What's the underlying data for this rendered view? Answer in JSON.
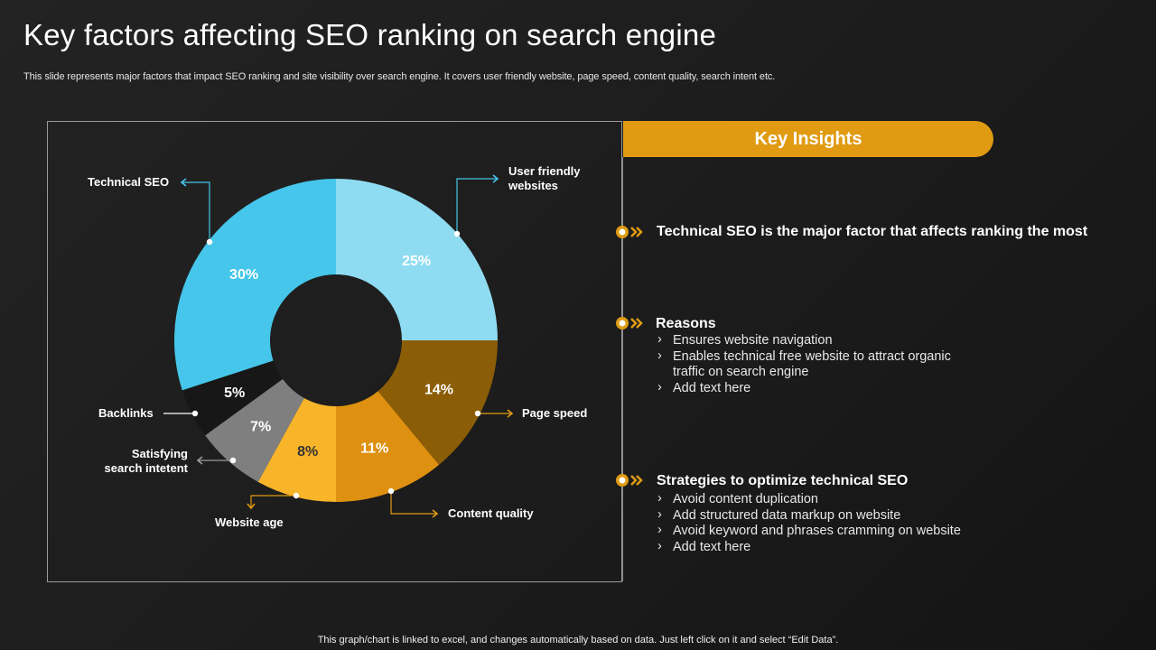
{
  "title": "Key factors affecting SEO ranking on search engine",
  "subtitle": "This slide represents major factors that impact SEO ranking and site visibility over search engine. It covers user friendly website, page speed, content quality, search intent etc.",
  "chart_data": {
    "type": "pie",
    "variant": "donut",
    "slices": [
      {
        "name": "User friendly websites",
        "value": 25,
        "label": "25%",
        "color": "#8fdcf2",
        "label_color": "#ffffff"
      },
      {
        "name": "Page speed",
        "value": 14,
        "label": "14%",
        "color": "#8a5d06",
        "label_color": "#ffffff"
      },
      {
        "name": "Content quality",
        "value": 11,
        "label": "11%",
        "color": "#de9010",
        "label_color": "#ffffff"
      },
      {
        "name": "Website age",
        "value": 8,
        "label": "8%",
        "color": "#f8b52a",
        "label_color": "#333333"
      },
      {
        "name": "Satisfying search intetent",
        "value": 7,
        "label": "7%",
        "color": "#7f7f7f",
        "label_color": "#ffffff"
      },
      {
        "name": "Backlinks",
        "value": 5,
        "label": "5%",
        "color": "#171717",
        "label_color": "#ffffff"
      },
      {
        "name": "Technical SEO",
        "value": 30,
        "label": "30%",
        "color": "#46c6ea",
        "label_color": "#ffffff"
      }
    ],
    "callouts": {
      "technical_seo": "Technical SEO",
      "user_friendly_1": "User friendly",
      "user_friendly_2": "websites",
      "page_speed": "Page speed",
      "content_quality": "Content quality",
      "website_age": "Website age",
      "satisfying_1": "Satisfying",
      "satisfying_2": "search intetent",
      "backlinks": "Backlinks"
    }
  },
  "insights": {
    "header": "Key Insights",
    "main_point": "Technical SEO is the major factor that affects ranking the most",
    "reasons": {
      "title": "Reasons",
      "items": [
        "Ensures website navigation",
        "Enables technical free website to attract organic",
        "traffic on search engine",
        "Add text here"
      ]
    },
    "strategies": {
      "title": "Strategies to optimize technical SEO",
      "items": [
        "Avoid content duplication",
        "Add structured data markup on website",
        "Avoid keyword and phrases cramming on website",
        "Add text here"
      ]
    }
  },
  "colors": {
    "accent": "#e09b12",
    "background": "#1e1e1e"
  },
  "footer": "This graph/chart is linked to excel,  and changes automatically based on data. Just left click on it and select “Edit Data”."
}
